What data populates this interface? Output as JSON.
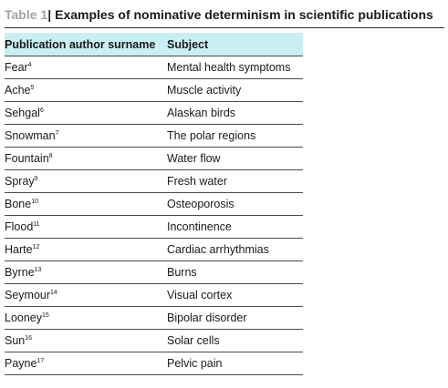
{
  "caption": {
    "label": "Table 1",
    "separator": "|",
    "title": "Examples of nominative determinism in scientific publications"
  },
  "table": {
    "headers": [
      "Publication author surname",
      "Subject"
    ],
    "rows": [
      {
        "surname": "Fear",
        "ref": "4",
        "subject": "Mental health symptoms"
      },
      {
        "surname": "Ache",
        "ref": "5",
        "subject": "Muscle activity"
      },
      {
        "surname": "Sehgal",
        "ref": "6",
        "subject": "Alaskan birds"
      },
      {
        "surname": "Snowman",
        "ref": "7",
        "subject": "The polar regions"
      },
      {
        "surname": "Fountain",
        "ref": "8",
        "subject": "Water flow"
      },
      {
        "surname": "Spray",
        "ref": "9",
        "subject": "Fresh water"
      },
      {
        "surname": "Bone",
        "ref": "10",
        "subject": "Osteoporosis"
      },
      {
        "surname": "Flood",
        "ref": "11",
        "subject": "Incontinence"
      },
      {
        "surname": "Harte",
        "ref": "12",
        "subject": "Cardiac arrhythmias"
      },
      {
        "surname": "Byrne",
        "ref": "13",
        "subject": "Burns"
      },
      {
        "surname": "Seymour",
        "ref": "14",
        "subject": "Visual cortex"
      },
      {
        "surname": "Looney",
        "ref": "15",
        "subject": "Bipolar disorder"
      },
      {
        "surname": "Sun",
        "ref": "16",
        "subject": "Solar cells"
      },
      {
        "surname": "Payne",
        "ref": "17",
        "subject": "Pelvic pain"
      }
    ]
  }
}
